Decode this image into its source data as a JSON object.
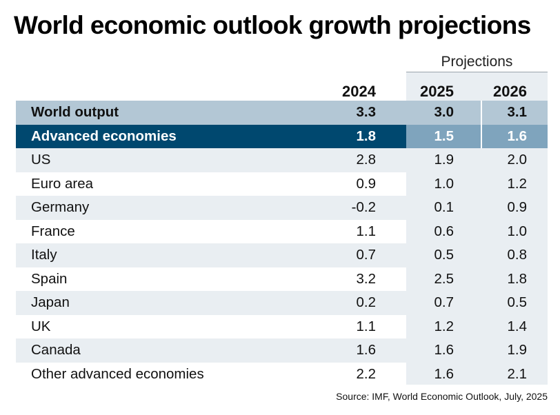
{
  "title": "World economic outlook growth projections",
  "projections_label": "Projections",
  "source": "Source: IMF, World Economic Outlook, July, 2025",
  "colors": {
    "world_row": "#b3c7d5",
    "advanced_row": "#00486f",
    "advanced_projection": "#7fa4bd",
    "alt_row": "#e9eef2"
  },
  "chart_data": {
    "type": "table",
    "title": "World economic outlook growth projections",
    "columns": [
      "2024",
      "2025",
      "2026"
    ],
    "projection_columns": [
      "2025",
      "2026"
    ],
    "rows": [
      {
        "name": "World output",
        "values": [
          "3.3",
          "3.0",
          "3.1"
        ]
      },
      {
        "name": "Advanced economies",
        "values": [
          "1.8",
          "1.5",
          "1.6"
        ]
      },
      {
        "name": "US",
        "values": [
          "2.8",
          "1.9",
          "2.0"
        ]
      },
      {
        "name": "Euro area",
        "values": [
          "0.9",
          "1.0",
          "1.2"
        ]
      },
      {
        "name": "Germany",
        "values": [
          "-0.2",
          "0.1",
          "0.9"
        ]
      },
      {
        "name": "France",
        "values": [
          "1.1",
          "0.6",
          "1.0"
        ]
      },
      {
        "name": "Italy",
        "values": [
          "0.7",
          "0.5",
          "0.8"
        ]
      },
      {
        "name": "Spain",
        "values": [
          "3.2",
          "2.5",
          "1.8"
        ]
      },
      {
        "name": "Japan",
        "values": [
          "0.2",
          "0.7",
          "0.5"
        ]
      },
      {
        "name": "UK",
        "values": [
          "1.1",
          "1.2",
          "1.4"
        ]
      },
      {
        "name": "Canada",
        "values": [
          "1.6",
          "1.6",
          "1.9"
        ]
      },
      {
        "name": "Other advanced economies",
        "values": [
          "2.2",
          "1.6",
          "2.1"
        ]
      }
    ]
  }
}
